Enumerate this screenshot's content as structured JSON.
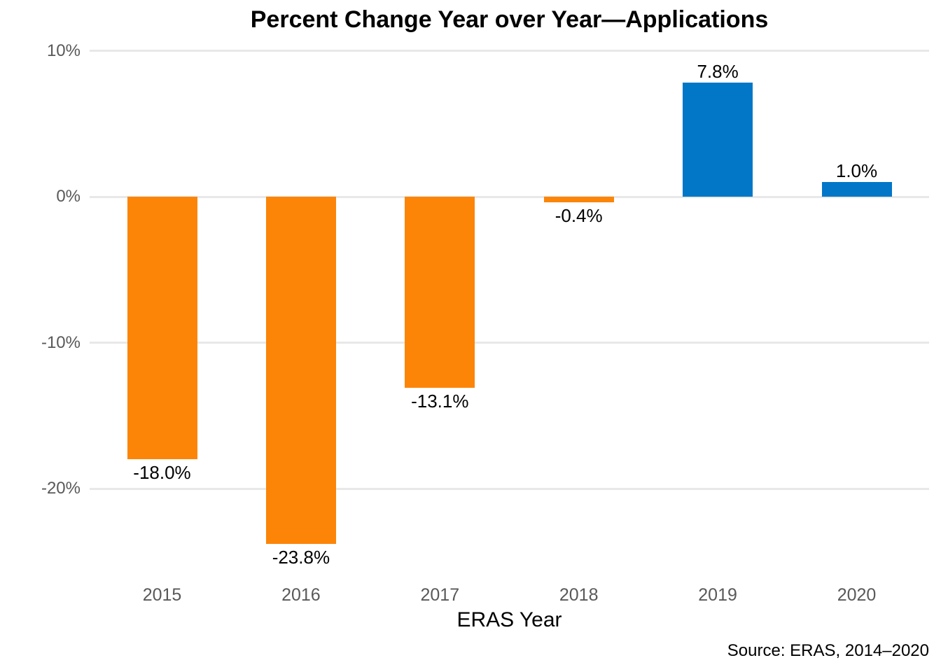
{
  "chart_data": {
    "type": "bar",
    "title": "Percent Change Year over Year—Applications",
    "xlabel": "ERAS Year",
    "ylabel": "",
    "source": "Source: ERAS, 2014–2020",
    "categories": [
      "2015",
      "2016",
      "2017",
      "2018",
      "2019",
      "2020"
    ],
    "values": [
      -18.0,
      -23.8,
      -13.1,
      -0.4,
      7.8,
      1.0
    ],
    "value_labels": [
      "-18.0%",
      "-23.8%",
      "-13.1%",
      "-0.4%",
      "7.8%",
      "1.0%"
    ],
    "y_ticks": [
      {
        "value": 10,
        "label": "10%"
      },
      {
        "value": 0,
        "label": "0%"
      },
      {
        "value": -10,
        "label": "-10%"
      },
      {
        "value": -20,
        "label": "-20%"
      }
    ],
    "ylim": [
      -26,
      10
    ],
    "grid": "horizontal-only",
    "legend": "none",
    "colors": {
      "positive_bar": "#0277c8",
      "negative_bar": "#fc8508",
      "gridline": "#e8e8e8",
      "tick_text": "#595959",
      "label_text": "#000000",
      "background": "#ffffff"
    }
  }
}
